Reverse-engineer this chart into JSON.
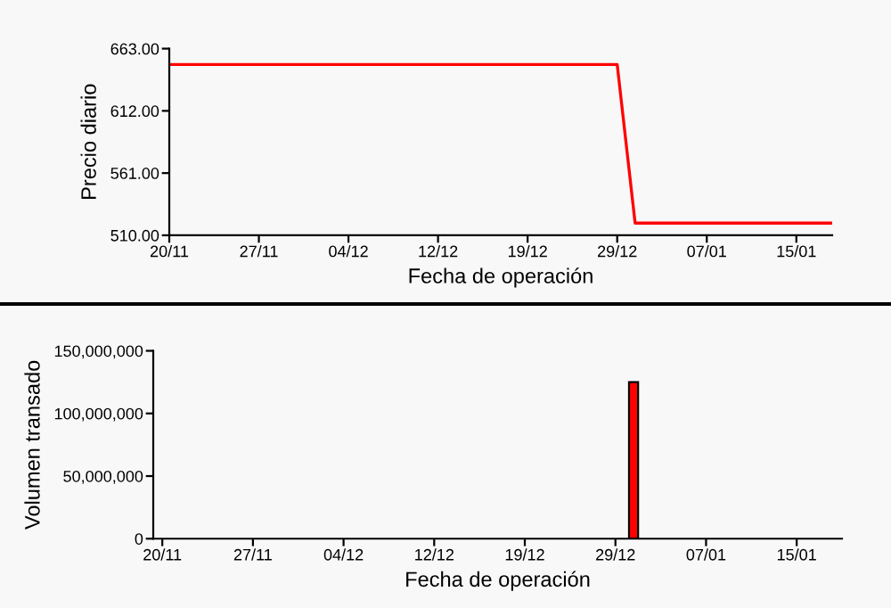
{
  "chart_data": [
    {
      "type": "line",
      "ylabel": "Precio diario",
      "xlabel": "Fecha de operación",
      "categories": [
        "20/11",
        null,
        null,
        null,
        null,
        "27/11",
        null,
        null,
        null,
        null,
        "04/12",
        null,
        null,
        null,
        null,
        "12/12",
        null,
        null,
        null,
        null,
        "19/12",
        null,
        null,
        null,
        null,
        "29/12",
        null,
        null,
        null,
        null,
        "07/01",
        null,
        null,
        null,
        null,
        "15/01",
        null,
        null
      ],
      "series": [
        {
          "color": "#ff0000",
          "values": [
            650,
            650,
            650,
            650,
            650,
            650,
            650,
            650,
            650,
            650,
            650,
            650,
            650,
            650,
            650,
            650,
            650,
            650,
            650,
            650,
            650,
            650,
            650,
            650,
            650,
            650,
            520,
            520,
            520,
            520,
            520,
            520,
            520,
            520,
            520,
            520,
            520,
            520
          ]
        }
      ],
      "ylim": [
        510,
        663
      ],
      "yticks": [
        {
          "value": 510,
          "label": "510.00"
        },
        {
          "value": 561,
          "label": "561.00"
        },
        {
          "value": 612,
          "label": "612.00"
        },
        {
          "value": 663,
          "label": "663.00"
        }
      ],
      "grid": false,
      "legend": false
    },
    {
      "type": "bar",
      "ylabel": "Volumen transado",
      "xlabel": "Fecha de operación",
      "categories": [
        "20/11",
        null,
        null,
        null,
        null,
        "27/11",
        null,
        null,
        null,
        null,
        "04/12",
        null,
        null,
        null,
        null,
        "12/12",
        null,
        null,
        null,
        null,
        "19/12",
        null,
        null,
        null,
        null,
        "29/12",
        null,
        null,
        null,
        null,
        "07/01",
        null,
        null,
        null,
        null,
        "15/01",
        null,
        null
      ],
      "series": [
        {
          "color": "#ff0000",
          "values": [
            null,
            null,
            null,
            null,
            null,
            null,
            null,
            null,
            null,
            null,
            null,
            null,
            null,
            null,
            null,
            null,
            null,
            null,
            null,
            null,
            null,
            null,
            null,
            null,
            null,
            null,
            125000000,
            null,
            null,
            null,
            null,
            null,
            null,
            null,
            null,
            null,
            null,
            null
          ]
        }
      ],
      "ylim": [
        0,
        150000000
      ],
      "yticks": [
        0,
        {
          "value": 50000000,
          "label": "50,000,000"
        },
        {
          "value": 100000000,
          "label": "100,000,000"
        },
        {
          "value": 150000000,
          "label": "150,000,000"
        }
      ],
      "grid": false,
      "legend": false
    }
  ]
}
